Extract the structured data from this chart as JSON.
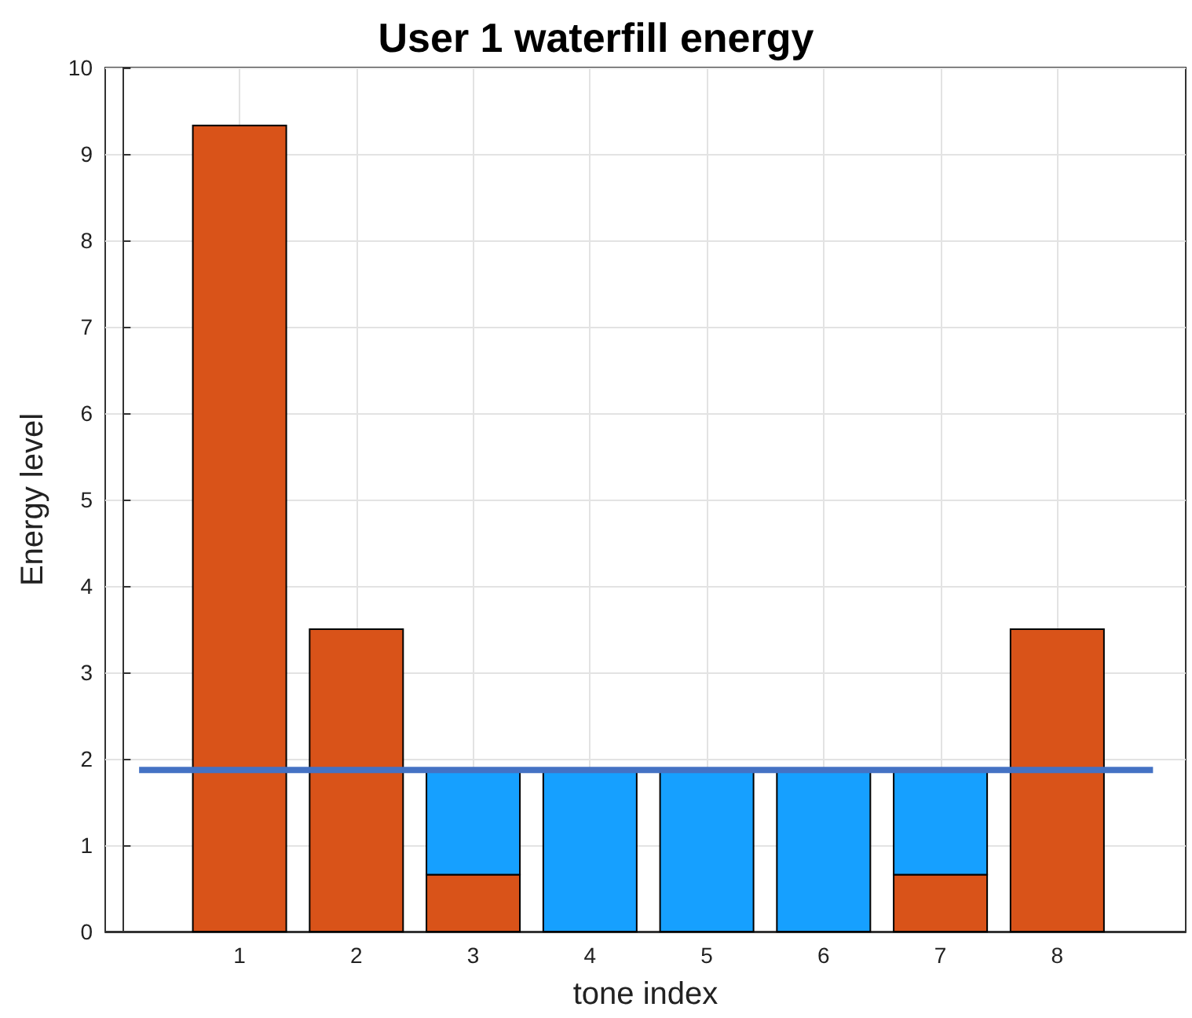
{
  "chart_data": {
    "type": "bar",
    "title": "User 1 waterfill energy",
    "xlabel": "tone index",
    "ylabel": "Energy level",
    "stacked": true,
    "x": [
      1,
      2,
      3,
      4,
      5,
      6,
      7,
      8
    ],
    "series": [
      {
        "color": "#d95319",
        "values": [
          9.33,
          3.5,
          0.66,
          null,
          null,
          null,
          0.66,
          3.5
        ]
      },
      {
        "color": "#16a0ff",
        "values": [
          null,
          null,
          1.21,
          1.87,
          1.87,
          1.87,
          1.21,
          null
        ]
      },
      {
        "type": "line",
        "color": "#4472c4",
        "x": [
          0.14,
          8.82
        ],
        "values": [
          1.87,
          1.87
        ]
      }
    ],
    "xlim": [
      -0.15,
      9.1
    ],
    "xticks": [
      1,
      2,
      3,
      4,
      5,
      6,
      7,
      8
    ],
    "ylim": [
      0,
      10
    ],
    "yticks": [
      0,
      1,
      2,
      3,
      4,
      5,
      6,
      7,
      8,
      9,
      10
    ],
    "grid": true,
    "marker": "none"
  }
}
